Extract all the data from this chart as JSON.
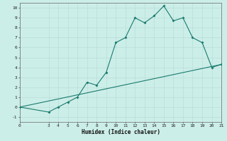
{
  "xlabel": "Humidex (Indice chaleur)",
  "bg_color": "#cceee8",
  "line_color": "#1a7a6e",
  "grid_color": "#b8ddd8",
  "xlim": [
    0,
    21
  ],
  "ylim": [
    -1.5,
    10.5
  ],
  "xticks": [
    0,
    3,
    4,
    5,
    6,
    7,
    8,
    9,
    10,
    11,
    12,
    13,
    14,
    15,
    16,
    17,
    18,
    19,
    20,
    21
  ],
  "yticks": [
    -1,
    0,
    1,
    2,
    3,
    4,
    5,
    6,
    7,
    8,
    9,
    10
  ],
  "curve_x": [
    0,
    3,
    4,
    5,
    6,
    7,
    8,
    9,
    10,
    11,
    12,
    13,
    14,
    15,
    16,
    17,
    18,
    19,
    20,
    21
  ],
  "curve_y": [
    0,
    -0.5,
    0,
    0.5,
    1.0,
    2.5,
    2.2,
    3.5,
    6.5,
    7.0,
    9.0,
    8.5,
    9.2,
    10.2,
    8.7,
    9.0,
    7.0,
    6.5,
    4.0,
    4.3
  ],
  "line_x": [
    0,
    21
  ],
  "line_y": [
    0,
    4.3
  ]
}
